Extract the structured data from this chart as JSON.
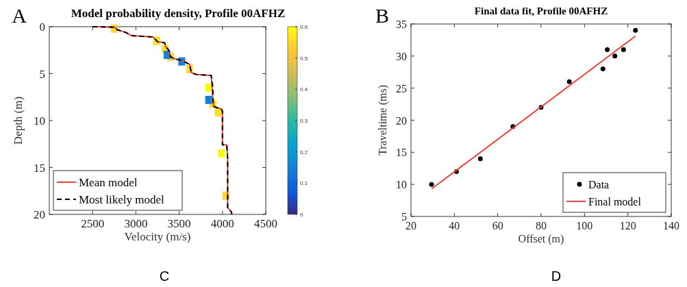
{
  "chart_data": [
    {
      "type": "line",
      "title": "Model probability density, Profile 00AFHZ",
      "xlabel": "Velocity (m/s)",
      "ylabel": "Depth (m)",
      "annotations": [
        "A",
        "C"
      ],
      "xlim": [
        2000,
        4500
      ],
      "xticks": [
        2500,
        3000,
        3500,
        4000,
        4500
      ],
      "ylim": [
        20,
        0
      ],
      "yticks": [
        0,
        5,
        10,
        15,
        20
      ],
      "clim": [
        0,
        0.6
      ],
      "cticks": [
        0,
        0.1,
        0.2,
        0.3,
        0.4,
        0.5,
        0.6
      ],
      "grid": false,
      "legend": "bottom left",
      "series": [
        {
          "type": "scatter",
          "marker": "square",
          "x": [
            3240,
            3340,
            3400,
            3620,
            3840,
            3890,
            3950,
            3990,
            4040,
            2750,
            3360,
            3530,
            3840
          ],
          "values": [
            1.5,
            2.4,
            3.2,
            4.5,
            6.5,
            8.2,
            9.1,
            13.5,
            18,
            0.2,
            3.0,
            3.7,
            7.8
          ],
          "colors": [
            "#f5e027",
            "#f5e027",
            "#f8d83a",
            "#f8d83a",
            "#f9fb0e",
            "#f5e027",
            "#f5e027",
            "#f9fb0e",
            "#f8d83a",
            "#f8d83a",
            "#1481d6",
            "#1481d6",
            "#1481d6"
          ]
        },
        {
          "name": "Mean model",
          "color": "#e8403a",
          "line_style": "solid",
          "x": [
            2520,
            2760,
            2780,
            2880,
            2950,
            3200,
            3250,
            3330,
            3350,
            3380,
            3400,
            3440,
            3530,
            3620,
            3640,
            3700,
            3870,
            3880,
            3890,
            3900,
            3990,
            4000,
            4000,
            4050,
            4060,
            4060,
            4100,
            4110
          ],
          "values": [
            0,
            0.05,
            0.3,
            0.6,
            0.95,
            1.1,
            1.6,
            1.7,
            2.2,
            2.5,
            3.2,
            3.4,
            3.6,
            4.0,
            4.9,
            5.1,
            5.2,
            6.5,
            7.8,
            8.5,
            8.8,
            9.0,
            12.6,
            12.6,
            14.0,
            19.3,
            19.7,
            20
          ]
        },
        {
          "name": "Most likely model",
          "color": "#000000",
          "line_style": "dashed",
          "x": [
            2500,
            2760,
            2780,
            2880,
            2950,
            3200,
            3250,
            3330,
            3350,
            3380,
            3400,
            3440,
            3530,
            3620,
            3640,
            3700,
            3870,
            3890,
            3890,
            3900,
            3990,
            4000,
            4000,
            4050,
            4060,
            4060,
            4100,
            4110
          ],
          "values": [
            0,
            0.05,
            0.3,
            0.6,
            0.95,
            1.1,
            1.6,
            1.7,
            2.2,
            2.5,
            3.2,
            3.4,
            3.6,
            4.0,
            4.9,
            5.1,
            5.2,
            6.5,
            7.8,
            8.5,
            8.8,
            9.0,
            12.6,
            12.6,
            14.0,
            19.3,
            19.7,
            20
          ]
        }
      ]
    },
    {
      "type": "scatter",
      "title": "Final data fit, Profile 00AFHZ",
      "xlabel": "Offset (m)",
      "ylabel": "Traveltime (ms)",
      "annotations": [
        "B",
        "D"
      ],
      "xlim": [
        20,
        140
      ],
      "xticks": [
        20,
        40,
        60,
        80,
        100,
        120,
        140
      ],
      "ylim": [
        5,
        35
      ],
      "yticks": [
        5,
        10,
        15,
        20,
        25,
        30,
        35
      ],
      "grid": false,
      "legend": "bottom right",
      "series": [
        {
          "name": "Data",
          "color": "#000000",
          "marker": "circle",
          "x": [
            29.5,
            41,
            52,
            67,
            80,
            93,
            108.5,
            110.5,
            114,
            118,
            123.5
          ],
          "values": [
            10,
            12,
            14,
            19,
            22,
            26,
            28,
            31,
            30,
            31,
            34
          ]
        },
        {
          "name": "Final model",
          "type": "line",
          "color": "#e8403a",
          "line_style": "solid",
          "x": [
            29.5,
            123.5
          ],
          "values": [
            9.3,
            33.1
          ]
        }
      ]
    }
  ]
}
